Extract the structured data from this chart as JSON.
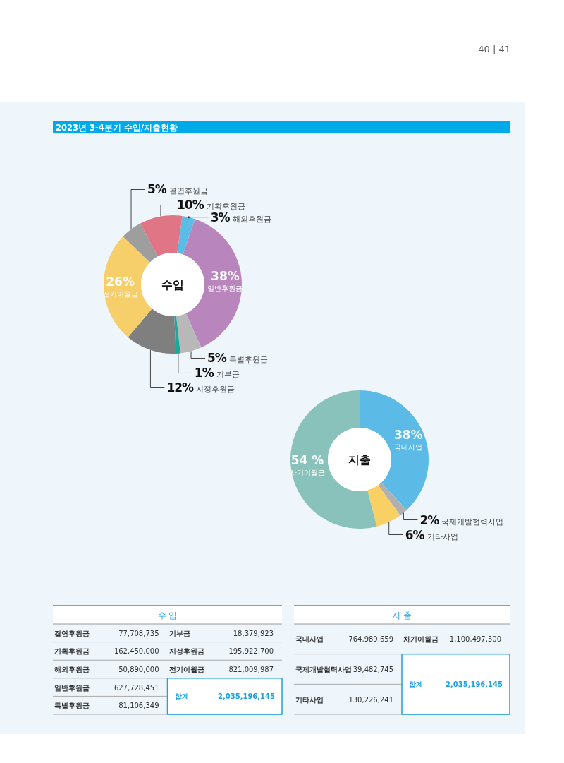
{
  "chart_data": [
    {
      "type": "donut",
      "title": "수입",
      "categories": [
        "해외후원금",
        "일반후원금",
        "특별후원금",
        "기부금",
        "지정후원금",
        "전기이월금",
        "결연후원금",
        "기획후원금"
      ],
      "values": [
        3,
        38,
        5,
        1,
        12,
        26,
        5,
        10
      ],
      "value_labels": [
        "3%",
        "38%",
        "5%",
        "1%",
        "12%",
        "26%",
        "5%",
        "10%"
      ],
      "colors": [
        "#5bbde6",
        "#b985bd",
        "#b8b8b8",
        "#1aa89a",
        "#7f7f7f",
        "#f7cf6a",
        "#9e9e9e",
        "#e07585"
      ],
      "annotations": [
        "2023년 3-4분기 수입/지출현황",
        "40 | 41"
      ]
    },
    {
      "type": "donut",
      "title": "지출",
      "categories": [
        "국내사업",
        "국제개발협력사업",
        "기타사업",
        "차기이월금"
      ],
      "values": [
        38,
        2,
        6,
        54
      ],
      "value_labels": [
        "38%",
        "2%",
        "6%",
        "54 %"
      ],
      "colors": [
        "#5bbae6",
        "#b0b0b0",
        "#f8d064",
        "#88c2bb"
      ]
    },
    {
      "type": "other",
      "title": "수 입",
      "annotations": [
        "결연후원금",
        "77,708,735",
        "기획후원금",
        "162,450,000",
        "해외후원금",
        "50,890,000",
        "일반후원금",
        "627,728,451",
        "특별후원금",
        "81,106,349",
        "기부금",
        "18,379,923",
        "지정후원금",
        "195,922,700",
        "전기이월금",
        "821,009,987",
        "합계",
        "2,035,196,145"
      ]
    },
    {
      "type": "other",
      "title": "지 출",
      "annotations": [
        "국내사업",
        "764,989,659",
        "국제개발협력사업",
        "39,482,745",
        "기타사업",
        "130,226,241",
        "차기이월금",
        "1,100,497,500",
        "합계",
        "2,035,196,145"
      ]
    }
  ]
}
